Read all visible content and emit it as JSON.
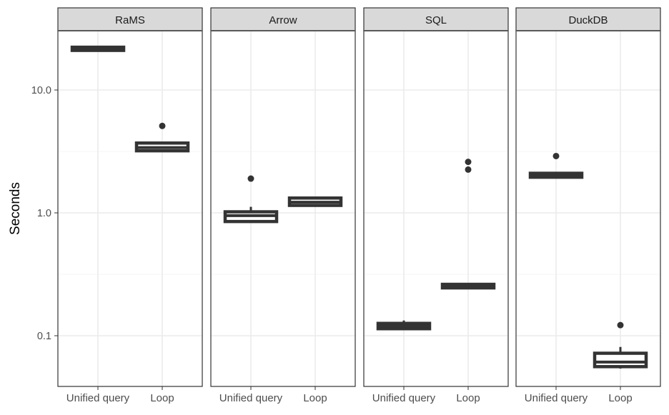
{
  "chart_data": {
    "type": "boxplot",
    "facets": [
      "RaMS",
      "Arrow",
      "SQL",
      "DuckDB"
    ],
    "categories": [
      "Unified query",
      "Loop"
    ],
    "ylabel": "Seconds",
    "xlabel": "",
    "y_scale": "log10",
    "ylim": [
      0.04,
      28
    ],
    "y_ticks": [
      0.1,
      1.0,
      10.0
    ],
    "y_tick_labels": [
      "0.1",
      "1.0",
      "10.0"
    ],
    "grid": true,
    "boxes": [
      {
        "facet": "RaMS",
        "category": "Unified query",
        "min": 20.8,
        "q1": 21.0,
        "median": 21.5,
        "q3": 22.3,
        "max": 22.5,
        "outliers": []
      },
      {
        "facet": "RaMS",
        "category": "Loop",
        "min": 3.15,
        "q1": 3.2,
        "median": 3.4,
        "q3": 3.7,
        "max": 3.75,
        "outliers": [
          5.1
        ]
      },
      {
        "facet": "Arrow",
        "category": "Unified query",
        "min": 0.84,
        "q1": 0.85,
        "median": 0.95,
        "q3": 1.02,
        "max": 1.12,
        "outliers": [
          1.9
        ]
      },
      {
        "facet": "Arrow",
        "category": "Loop",
        "min": 1.12,
        "q1": 1.15,
        "median": 1.22,
        "q3": 1.32,
        "max": 1.36,
        "outliers": []
      },
      {
        "facet": "SQL",
        "category": "Unified query",
        "min": 0.114,
        "q1": 0.114,
        "median": 0.12,
        "q3": 0.126,
        "max": 0.133,
        "outliers": []
      },
      {
        "facet": "SQL",
        "category": "Loop",
        "min": 0.243,
        "q1": 0.245,
        "median": 0.252,
        "q3": 0.262,
        "max": 0.265,
        "outliers": [
          2.25,
          2.6
        ]
      },
      {
        "facet": "DuckDB",
        "category": "Unified query",
        "min": 1.95,
        "q1": 1.95,
        "median": 2.02,
        "q3": 2.1,
        "max": 2.12,
        "outliers": [
          2.9
        ]
      },
      {
        "facet": "DuckDB",
        "category": "Loop",
        "min": 0.054,
        "q1": 0.056,
        "median": 0.061,
        "q3": 0.072,
        "max": 0.081,
        "outliers": [
          0.122
        ]
      }
    ],
    "colors": {
      "box_fill": "#ffffff",
      "box_line": "#333333",
      "strip_fill": "#d9d9d9",
      "strip_border": "#595959",
      "grid_major": "#ebebeb",
      "grid_minor": "#f5f5f5",
      "text": "#4d4d4d",
      "axis_title": "#000000"
    }
  }
}
